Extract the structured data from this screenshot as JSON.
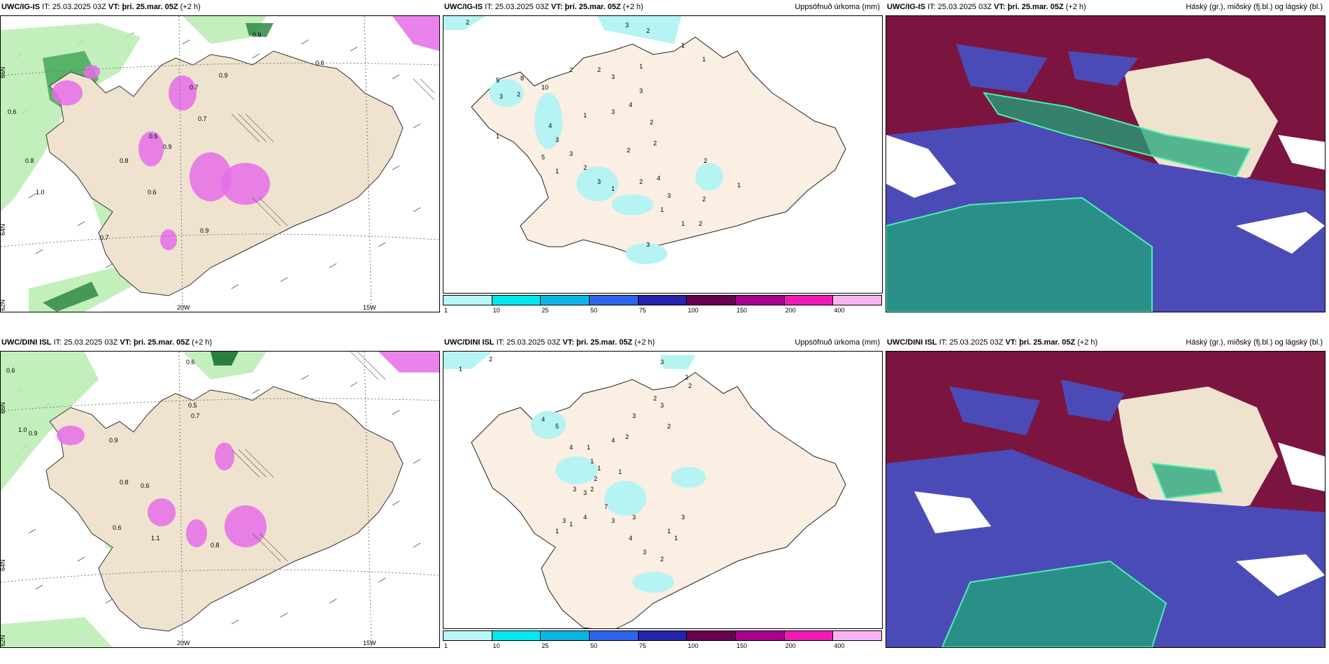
{
  "colors": {
    "land": "#efe2cf",
    "land_light": "#fbeee2",
    "green_light": "#b8ecb0",
    "green_dark": "#0e6b2c",
    "magenta": "#e56de8",
    "precip_cyan": "#b6f4f4",
    "high_cloud": "#7b1540",
    "mid_cloud": "#4b4bb8",
    "low_cloud": "#1fa67a"
  },
  "colorbar": {
    "colors": [
      "#b8f6f6",
      "#00e8ef",
      "#08b6e4",
      "#2e64ec",
      "#2424b0",
      "#6a0050",
      "#a8008c",
      "#f01ab6",
      "#f8b4f2"
    ],
    "ticks": [
      "1",
      "10",
      "25",
      "50",
      "75",
      "100",
      "150",
      "200",
      "400"
    ]
  },
  "rows": [
    {
      "model": "UWC/IG-IS",
      "it_label": "IT:",
      "it_value": "25.03.2025 03Z",
      "vt_label": "VT:",
      "vt_value": "þri. 25.mar. 05Z",
      "offset": "(+2 h)",
      "precip_title": "Uppsöfnuð úrkoma (mm)",
      "cloud_title": "Háský (gr.), miðský (fj.bl.) og lágský (bl.)",
      "lat_labels": [
        "66N",
        "64N",
        "62N"
      ],
      "lon_labels": [
        "20W",
        "15W"
      ],
      "wind_labels": [
        "0.9",
        "0.6",
        "0.8",
        "0.7",
        "0.9",
        "0.5",
        "0.7",
        "0.8",
        "0.6",
        "0.9",
        "1.0",
        "0.7",
        "0.6",
        "0.9"
      ],
      "precip_labels": [
        "2",
        "3",
        "2",
        "1",
        "1",
        "5",
        "8",
        "10",
        "3",
        "2",
        "2",
        "2",
        "3",
        "1",
        "3",
        "4",
        "1",
        "3",
        "3",
        "4",
        "3",
        "2",
        "1",
        "5",
        "2",
        "2",
        "1",
        "2",
        "3",
        "1",
        "2",
        "4",
        "2",
        "1",
        "3",
        "2",
        "3",
        "1",
        "2",
        "1"
      ]
    },
    {
      "model": "UWC/DINI ISL",
      "it_label": "IT:",
      "it_value": "25.03.2025 03Z",
      "vt_label": "VT:",
      "vt_value": "þri. 25.mar. 05Z",
      "offset": "(+2 h)",
      "precip_title": "Uppsöfnuð úrkoma (mm)",
      "cloud_title": "Háský (gr.), miðský (fj.bl.) og lágský (bl.)",
      "lat_labels": [
        "66N",
        "64N",
        "62N"
      ],
      "lon_labels": [
        "20W",
        "15W"
      ],
      "wind_labels": [
        "0.6",
        "0.6",
        "0.5",
        "0.7",
        "0.9",
        "1.0",
        "0.8",
        "0.6",
        "0.9",
        "0.6",
        "0.8",
        "1.1"
      ],
      "precip_labels": [
        "1",
        "2",
        "3",
        "2",
        "2",
        "2",
        "3",
        "2",
        "4",
        "5",
        "4",
        "2",
        "3",
        "4",
        "1",
        "1",
        "2",
        "3",
        "3",
        "2",
        "1",
        "1",
        "7",
        "4",
        "3",
        "1",
        "1",
        "3",
        "3",
        "4",
        "3",
        "2",
        "1",
        "1",
        "3"
      ]
    }
  ]
}
